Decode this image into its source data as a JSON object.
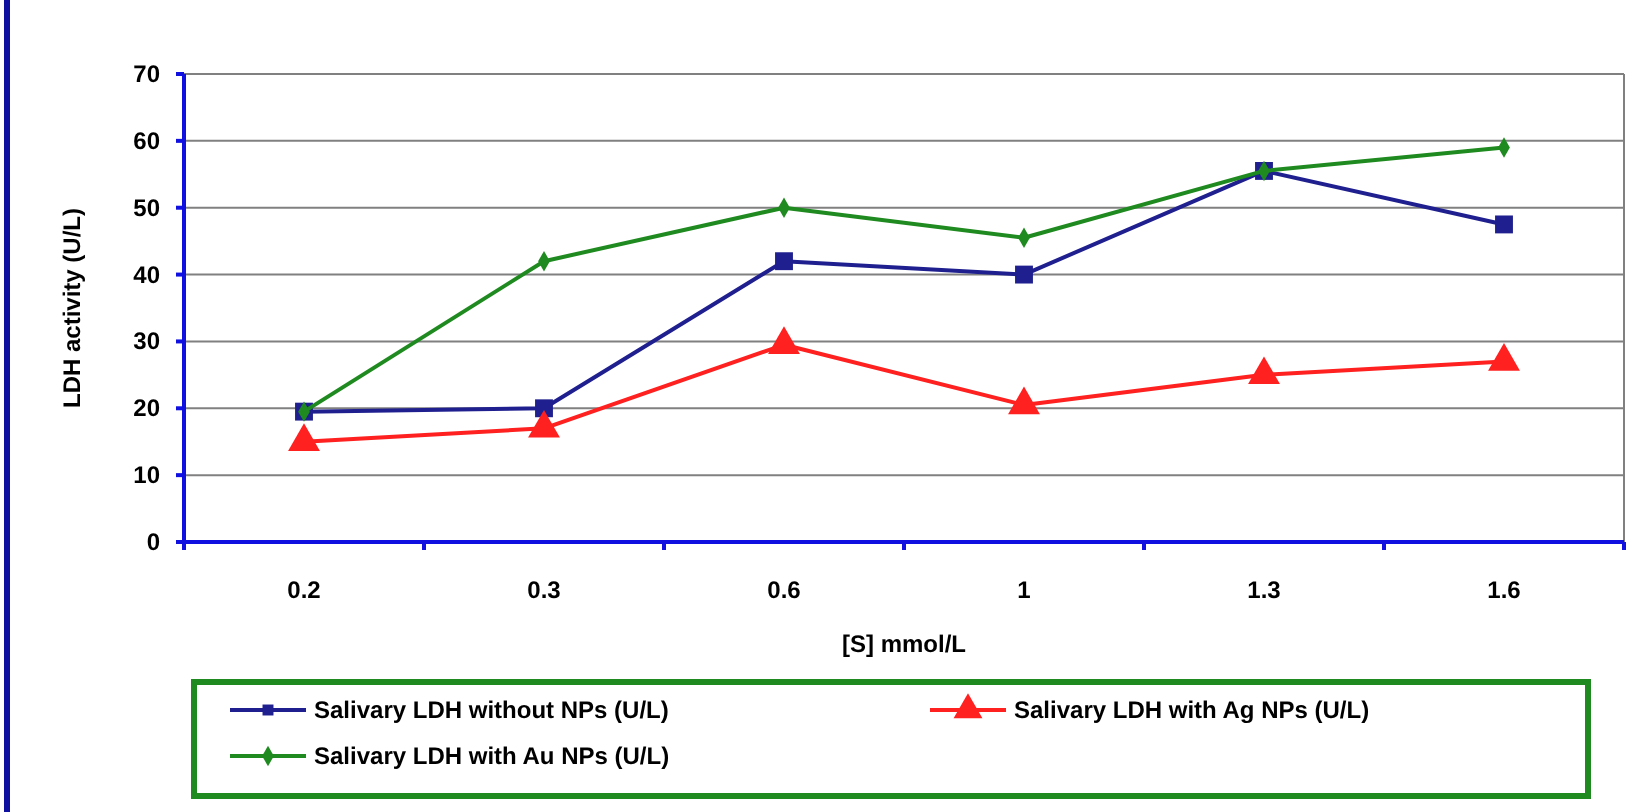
{
  "chart_data": {
    "type": "line",
    "xlabel": "[S] mmol/L",
    "ylabel": "LDH activity (U/L)",
    "categories": [
      "0.2",
      "0.3",
      "0.6",
      "1",
      "1.3",
      "1.6"
    ],
    "ylim": [
      0,
      70
    ],
    "yticks": [
      0,
      10,
      20,
      30,
      40,
      50,
      60,
      70
    ],
    "grid": "y",
    "legend": "bottom",
    "series": [
      {
        "name": "Salivary LDH without NPs (U/L)",
        "color": "#1f1f8f",
        "marker": "square",
        "values": [
          19.5,
          20,
          42,
          40,
          55.5,
          47.5
        ]
      },
      {
        "name": "Salivary LDH with Ag NPs (U/L)",
        "color": "#ff2020",
        "marker": "triangle",
        "values": [
          15,
          17,
          29.5,
          20.5,
          25,
          27
        ]
      },
      {
        "name": "Salivary LDH with Au NPs (U/L)",
        "color": "#1f8a1f",
        "marker": "diamond",
        "values": [
          19.5,
          42,
          50,
          45.5,
          55.5,
          59
        ]
      }
    ]
  }
}
